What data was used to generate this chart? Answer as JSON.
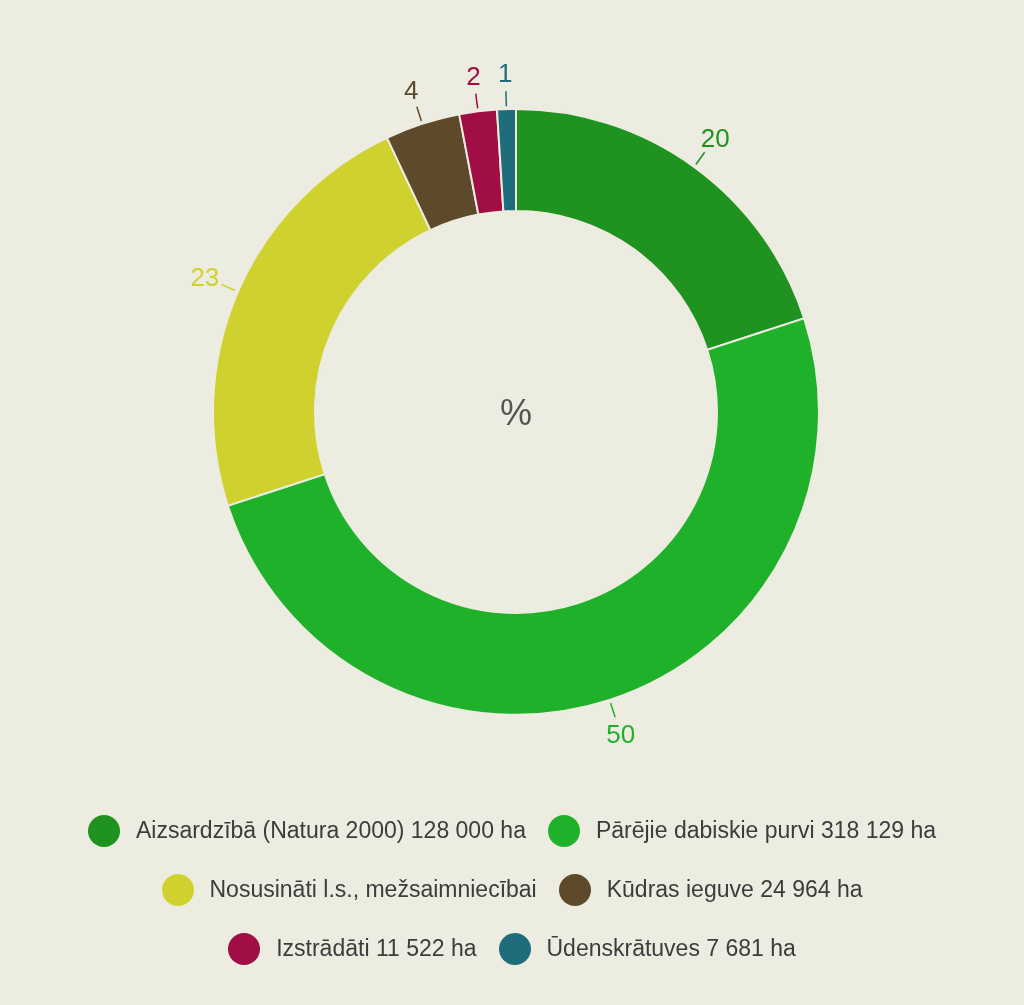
{
  "chart_data": {
    "type": "donut",
    "categories": [
      "Aizsardzībā (Natura 2000) 128 000 ha",
      "Pārējie dabiskie purvi 318 129 ha",
      "Nosusināti l.s., mežsaimniecībai",
      "Kūdras ieguve 24 964 ha",
      "Izstrādāti 11 522 ha",
      "Ūdenskrātuves 7 681 ha"
    ],
    "values": [
      20,
      50,
      23,
      4,
      2,
      1
    ],
    "colors": [
      "#1f921f",
      "#1fb12a",
      "#cfd22e",
      "#5e4a2a",
      "#a10d45",
      "#1f6d7a"
    ],
    "annotations": [
      "%"
    ],
    "data_labels": true,
    "legend": "bottom"
  }
}
